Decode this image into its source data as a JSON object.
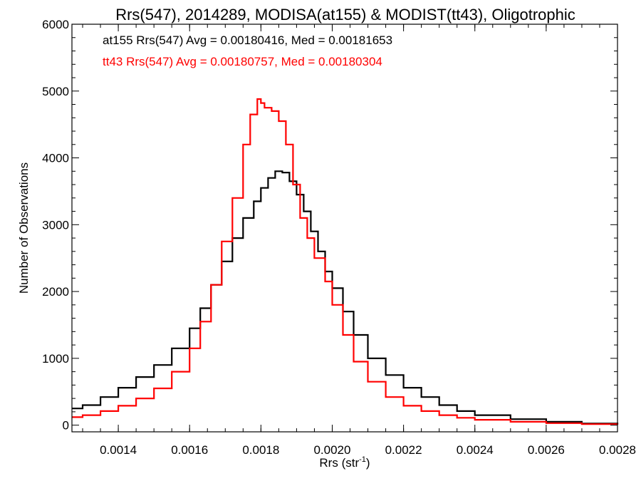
{
  "chart_data": {
    "type": "line",
    "title": "Rrs(547), 2014289, MODISA(at155) & MODIST(tt43), Oligotrophic",
    "xlabel": "Rrs (str",
    "xlabel_superscript": "-1",
    "xlabel_close": ")",
    "ylabel": "Number of Observations",
    "xlim": [
      0.00127,
      0.0028
    ],
    "ylim": [
      -100,
      6000
    ],
    "x_ticks": [
      0.0014,
      0.0016,
      0.0018,
      0.002,
      0.0022,
      0.0024,
      0.0026,
      0.0028
    ],
    "x_tick_labels": [
      "0.0014",
      "0.0016",
      "0.0018",
      "0.0020",
      "0.0022",
      "0.0024",
      "0.0026",
      "0.0028"
    ],
    "y_ticks": [
      0,
      1000,
      2000,
      3000,
      4000,
      5000,
      6000
    ],
    "y_tick_labels": [
      "0",
      "1000",
      "2000",
      "3000",
      "4000",
      "5000",
      "6000"
    ],
    "grid": false,
    "legend_position": "top-left",
    "series": [
      {
        "name": "at155 Rrs(547) Avg = 0.00180416, Med = 0.00181653",
        "color": "#000000",
        "x": [
          0.00127,
          0.0013,
          0.00135,
          0.0014,
          0.00145,
          0.0015,
          0.00155,
          0.0016,
          0.00163,
          0.00166,
          0.00169,
          0.00172,
          0.00175,
          0.00178,
          0.0018,
          0.00182,
          0.00184,
          0.00186,
          0.00188,
          0.0019,
          0.00192,
          0.00194,
          0.00196,
          0.00198,
          0.002,
          0.00203,
          0.00206,
          0.0021,
          0.00215,
          0.0022,
          0.00225,
          0.0023,
          0.00235,
          0.0024,
          0.0025,
          0.0026,
          0.0027,
          0.0028
        ],
        "y": [
          250,
          300,
          420,
          560,
          720,
          900,
          1150,
          1450,
          1750,
          2100,
          2450,
          2800,
          3100,
          3350,
          3550,
          3700,
          3800,
          3780,
          3650,
          3450,
          3200,
          2900,
          2600,
          2300,
          2050,
          1700,
          1350,
          1000,
          750,
          560,
          420,
          300,
          210,
          150,
          90,
          50,
          25,
          10
        ]
      },
      {
        "name": "tt43 Rrs(547) Avg = 0.00180757, Med = 0.00180304",
        "color": "#ff0000",
        "x": [
          0.00127,
          0.0013,
          0.00135,
          0.0014,
          0.00145,
          0.0015,
          0.00155,
          0.0016,
          0.00163,
          0.00166,
          0.00169,
          0.00172,
          0.00175,
          0.00177,
          0.00179,
          0.0018,
          0.00181,
          0.00183,
          0.00185,
          0.00187,
          0.00189,
          0.00191,
          0.00193,
          0.00195,
          0.00198,
          0.002,
          0.00203,
          0.00206,
          0.0021,
          0.00215,
          0.0022,
          0.00225,
          0.0023,
          0.00235,
          0.0024,
          0.0025,
          0.0026,
          0.0027,
          0.0028
        ],
        "y": [
          120,
          150,
          210,
          290,
          400,
          550,
          800,
          1150,
          1550,
          2100,
          2750,
          3400,
          4200,
          4650,
          4880,
          4820,
          4750,
          4700,
          4550,
          4200,
          3600,
          3100,
          2800,
          2500,
          2150,
          1800,
          1350,
          950,
          650,
          420,
          290,
          210,
          150,
          110,
          80,
          50,
          30,
          15,
          8
        ]
      }
    ]
  }
}
